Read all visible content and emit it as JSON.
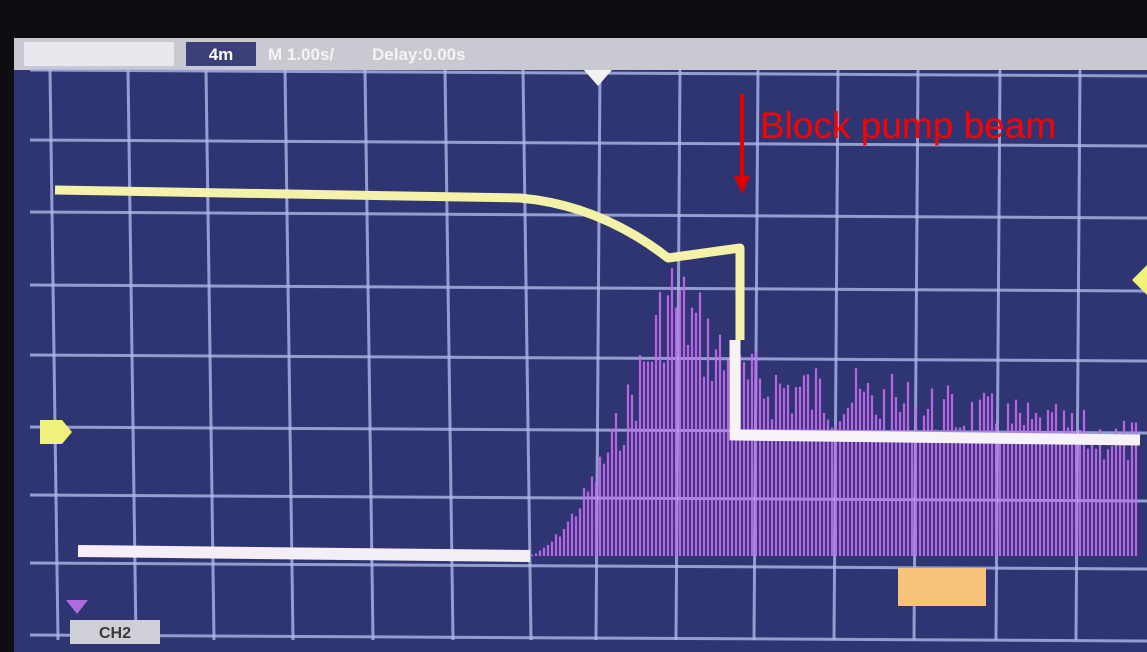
{
  "screen": {
    "top_bar": {
      "items": [
        "4m",
        "M 1.00s/",
        "Delay:0.00s"
      ]
    },
    "channel_label": "CH2"
  },
  "annotation": {
    "text": "Block pump beam"
  }
}
